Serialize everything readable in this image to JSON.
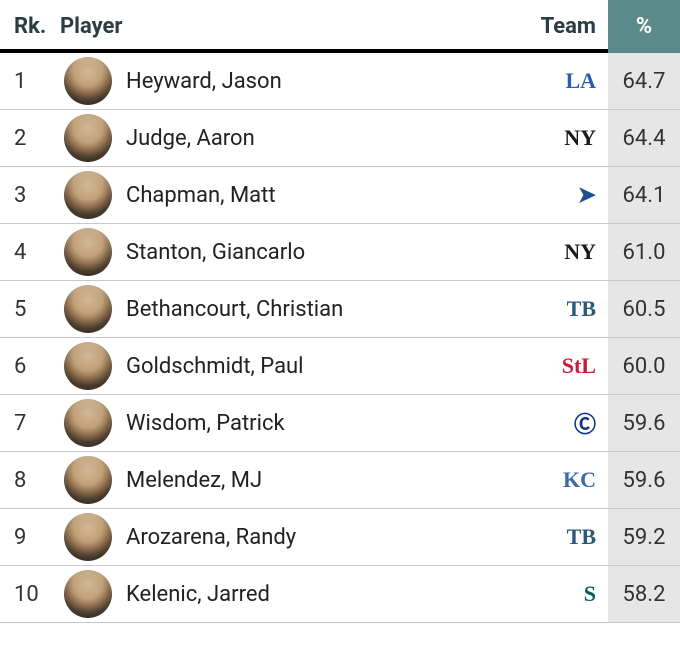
{
  "header": {
    "rank": "Rk.",
    "player": "Player",
    "team": "Team",
    "pct": "%"
  },
  "colors": {
    "header_text": "#2a3d45",
    "pct_header_bg": "#5a8a8a",
    "pct_cell_bg": "#e6e6e6",
    "row_border": "#c8c8c8"
  },
  "teams": {
    "LA": {
      "abbr": "LA",
      "color": "#2a5db0"
    },
    "NYY": {
      "abbr": "NY",
      "color": "#1a1a1a"
    },
    "TOR": {
      "abbr": "➤",
      "color": "#1d4f91"
    },
    "TB": {
      "abbr": "TB",
      "color": "#2a5a78"
    },
    "STL": {
      "abbr": "StL",
      "color": "#c41e3a"
    },
    "CHC": {
      "abbr": "Ⓒ",
      "color": "#0e3386"
    },
    "KC": {
      "abbr": "KC",
      "color": "#3a6aa8"
    },
    "SEA": {
      "abbr": "S",
      "color": "#0c5c56"
    }
  },
  "rows": [
    {
      "rank": "1",
      "name": "Heyward, Jason",
      "team": "LA",
      "pct": "64.7"
    },
    {
      "rank": "2",
      "name": "Judge, Aaron",
      "team": "NYY",
      "pct": "64.4"
    },
    {
      "rank": "3",
      "name": "Chapman, Matt",
      "team": "TOR",
      "pct": "64.1"
    },
    {
      "rank": "4",
      "name": "Stanton, Giancarlo",
      "team": "NYY",
      "pct": "61.0"
    },
    {
      "rank": "5",
      "name": "Bethancourt, Christian",
      "team": "TB",
      "pct": "60.5"
    },
    {
      "rank": "6",
      "name": "Goldschmidt, Paul",
      "team": "STL",
      "pct": "60.0"
    },
    {
      "rank": "7",
      "name": "Wisdom, Patrick",
      "team": "CHC",
      "pct": "59.6"
    },
    {
      "rank": "8",
      "name": "Melendez, MJ",
      "team": "KC",
      "pct": "59.6"
    },
    {
      "rank": "9",
      "name": "Arozarena, Randy",
      "team": "TB",
      "pct": "59.2"
    },
    {
      "rank": "10",
      "name": "Kelenic, Jarred",
      "team": "SEA",
      "pct": "58.2"
    }
  ]
}
